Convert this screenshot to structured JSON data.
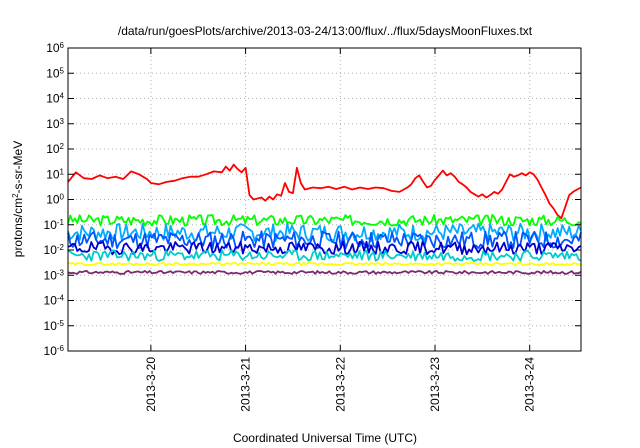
{
  "chart_data": {
    "type": "line",
    "title": "/data/run/goesPlots/archive/2013-03-24/13:00/flux/../flux/5daysMoonFluxes.txt",
    "xlabel": "Coordinated Universal Time (UTC)",
    "ylabel": {
      "pre": "protons/cm",
      "sup": "2",
      "post": "-s-sr-MeV"
    },
    "y_scale": "log",
    "ylim": [
      "1e-6",
      "1e6"
    ],
    "y_ticks": [
      {
        "value": -6,
        "base": "10",
        "exp": "-6"
      },
      {
        "value": -5,
        "base": "10",
        "exp": "-5"
      },
      {
        "value": -4,
        "base": "10",
        "exp": "-4"
      },
      {
        "value": -3,
        "base": "10",
        "exp": "-3"
      },
      {
        "value": -2,
        "base": "10",
        "exp": "-2"
      },
      {
        "value": -1,
        "base": "10",
        "exp": "-1"
      },
      {
        "value": 0,
        "base": "10",
        "exp": "0"
      },
      {
        "value": 1,
        "base": "10",
        "exp": "1"
      },
      {
        "value": 2,
        "base": "10",
        "exp": "2"
      },
      {
        "value": 3,
        "base": "10",
        "exp": "3"
      },
      {
        "value": 4,
        "base": "10",
        "exp": "4"
      },
      {
        "value": 5,
        "base": "10",
        "exp": "5"
      },
      {
        "value": 6,
        "base": "10",
        "exp": "6"
      }
    ],
    "xlim": [
      "2013-03-19 03:00",
      "2013-03-24 13:00"
    ],
    "x_ticks": [
      {
        "day": 20,
        "label": "2013-3-20"
      },
      {
        "day": 21,
        "label": "2013-3-21"
      },
      {
        "day": 22,
        "label": "2013-3-22"
      },
      {
        "day": 23,
        "label": "2013-3-23"
      },
      {
        "day": 24,
        "label": "2013-3-24"
      }
    ],
    "grid": true,
    "series": [
      {
        "color": "#ff0000",
        "mode": "keys",
        "points": [
          [
            "2013-03-19 03:00",
            5.0
          ],
          [
            "2013-03-19 05:00",
            12
          ],
          [
            "2013-03-19 07:00",
            7
          ],
          [
            "2013-03-19 09:00",
            6.5
          ],
          [
            "2013-03-19 11:00",
            9
          ],
          [
            "2013-03-19 13:00",
            7
          ],
          [
            "2013-03-19 15:00",
            8
          ],
          [
            "2013-03-19 17:00",
            6.5
          ],
          [
            "2013-03-19 19:00",
            13
          ],
          [
            "2013-03-19 21:00",
            10
          ],
          [
            "2013-03-19 23:00",
            6.5
          ],
          [
            "2013-03-20 00:00",
            4.5
          ],
          [
            "2013-03-20 02:00",
            4
          ],
          [
            "2013-03-20 04:00",
            5
          ],
          [
            "2013-03-20 06:00",
            5.5
          ],
          [
            "2013-03-20 08:00",
            7
          ],
          [
            "2013-03-20 10:00",
            8
          ],
          [
            "2013-03-20 12:00",
            8
          ],
          [
            "2013-03-20 14:00",
            10
          ],
          [
            "2013-03-20 16:00",
            13
          ],
          [
            "2013-03-20 18:00",
            12
          ],
          [
            "2013-03-20 19:00",
            20
          ],
          [
            "2013-03-20 20:00",
            14
          ],
          [
            "2013-03-20 21:00",
            24
          ],
          [
            "2013-03-20 22:00",
            16
          ],
          [
            "2013-03-20 23:00",
            12
          ],
          [
            "2013-03-21 00:00",
            18
          ],
          [
            "2013-03-21 01:00",
            1.5
          ],
          [
            "2013-03-21 02:00",
            1.0
          ],
          [
            "2013-03-21 04:00",
            1.2
          ],
          [
            "2013-03-21 05:00",
            0.9
          ],
          [
            "2013-03-21 06:00",
            1.3
          ],
          [
            "2013-03-21 07:00",
            1.0
          ],
          [
            "2013-03-21 08:00",
            1.6
          ],
          [
            "2013-03-21 09:00",
            1.4
          ],
          [
            "2013-03-21 10:00",
            4.5
          ],
          [
            "2013-03-21 11:00",
            2.0
          ],
          [
            "2013-03-21 12:00",
            1.8
          ],
          [
            "2013-03-21 13:00",
            18
          ],
          [
            "2013-03-21 14:00",
            4.5
          ],
          [
            "2013-03-21 15:00",
            2.5
          ],
          [
            "2013-03-21 17:00",
            3
          ],
          [
            "2013-03-21 19:00",
            2.8
          ],
          [
            "2013-03-21 21:00",
            3.2
          ],
          [
            "2013-03-21 23:00",
            2.6
          ],
          [
            "2013-03-22 01:00",
            3.2
          ],
          [
            "2013-03-22 03:00",
            2.5
          ],
          [
            "2013-03-22 05:00",
            3
          ],
          [
            "2013-03-22 07:00",
            2.6
          ],
          [
            "2013-03-22 09:00",
            3
          ],
          [
            "2013-03-22 11:00",
            2.8
          ],
          [
            "2013-03-22 13:00",
            2.2
          ],
          [
            "2013-03-22 15:00",
            2
          ],
          [
            "2013-03-22 17:00",
            3
          ],
          [
            "2013-03-22 18:00",
            4
          ],
          [
            "2013-03-22 19:00",
            7
          ],
          [
            "2013-03-22 20:00",
            9
          ],
          [
            "2013-03-22 21:00",
            5
          ],
          [
            "2013-03-22 22:00",
            3
          ],
          [
            "2013-03-22 23:00",
            3.5
          ],
          [
            "2013-03-23 00:00",
            6
          ],
          [
            "2013-03-23 01:00",
            9
          ],
          [
            "2013-03-23 02:00",
            14
          ],
          [
            "2013-03-23 03:00",
            9
          ],
          [
            "2013-03-23 04:00",
            11
          ],
          [
            "2013-03-23 05:00",
            8
          ],
          [
            "2013-03-23 06:00",
            5
          ],
          [
            "2013-03-23 07:00",
            4
          ],
          [
            "2013-03-23 08:00",
            3
          ],
          [
            "2013-03-23 09:00",
            2
          ],
          [
            "2013-03-23 10:00",
            1.6
          ],
          [
            "2013-03-23 11:00",
            1.3
          ],
          [
            "2013-03-23 12:00",
            1.6
          ],
          [
            "2013-03-23 13:00",
            1.2
          ],
          [
            "2013-03-23 14:00",
            1.5
          ],
          [
            "2013-03-23 15:00",
            2.0
          ],
          [
            "2013-03-23 16:00",
            1.7
          ],
          [
            "2013-03-23 17:00",
            2.5
          ],
          [
            "2013-03-23 18:00",
            5
          ],
          [
            "2013-03-23 19:00",
            10
          ],
          [
            "2013-03-23 20:00",
            8
          ],
          [
            "2013-03-23 21:00",
            9
          ],
          [
            "2013-03-23 22:00",
            11
          ],
          [
            "2013-03-23 23:00",
            9
          ],
          [
            "2013-03-24 00:00",
            12
          ],
          [
            "2013-03-24 01:00",
            10
          ],
          [
            "2013-03-24 02:00",
            6
          ],
          [
            "2013-03-24 03:00",
            3
          ],
          [
            "2013-03-24 04:00",
            1.5
          ],
          [
            "2013-03-24 05:00",
            0.7
          ],
          [
            "2013-03-24 06:00",
            0.45
          ],
          [
            "2013-03-24 07:00",
            0.25
          ],
          [
            "2013-03-24 08:00",
            0.18
          ],
          [
            "2013-03-24 09:00",
            0.5
          ],
          [
            "2013-03-24 10:00",
            1.5
          ],
          [
            "2013-03-24 11:00",
            2.0
          ],
          [
            "2013-03-24 12:00",
            2.5
          ],
          [
            "2013-03-24 13:00",
            3.0
          ]
        ]
      },
      {
        "color": "#00ff00",
        "mode": "noisy",
        "level": 0.15,
        "spread": 0.22,
        "seed": 3
      },
      {
        "color": "#00aaff",
        "mode": "noisy",
        "level": 0.05,
        "spread": 0.35,
        "seed": 7
      },
      {
        "color": "#0055ff",
        "mode": "noisy",
        "level": 0.025,
        "spread": 0.35,
        "seed": 11
      },
      {
        "color": "#0000cc",
        "mode": "noisy",
        "level": 0.012,
        "spread": 0.25,
        "seed": 19
      },
      {
        "color": "#00cccc",
        "mode": "noisy",
        "level": 0.006,
        "spread": 0.22,
        "seed": 23
      },
      {
        "color": "#ffff00",
        "mode": "noisy",
        "level": 0.0028,
        "spread": 0.05,
        "seed": 29
      },
      {
        "color": "#7a2b6e",
        "mode": "noisy",
        "level": 0.0013,
        "spread": 0.06,
        "seed": 31
      }
    ]
  }
}
